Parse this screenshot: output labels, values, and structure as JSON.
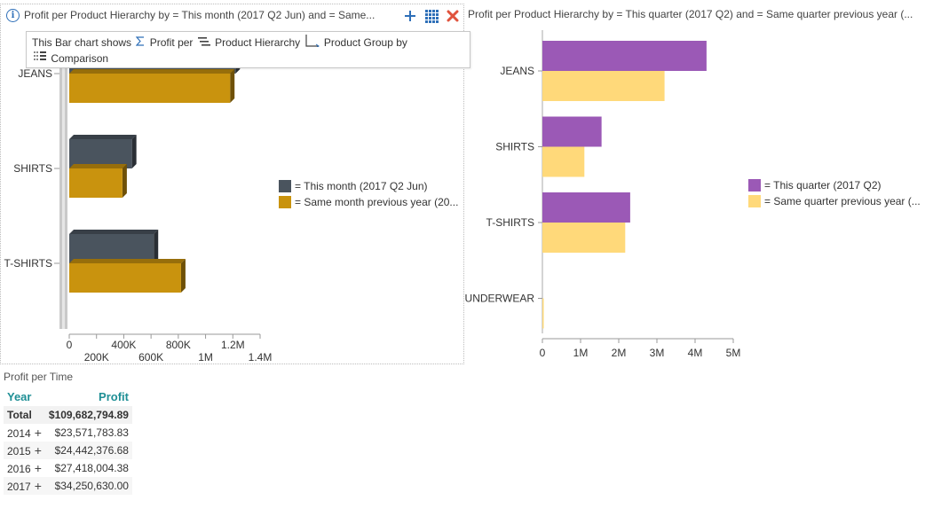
{
  "left_panel": {
    "title": "Profit per Product Hierarchy by = This month (2017 Q2 Jun) and = Same...",
    "tooltip": {
      "line1_prefix": "This Bar chart shows",
      "measure": "Profit per",
      "dimension": "Product Hierarchy",
      "group": "Product Group by",
      "line2": "Comparison"
    },
    "icons": {
      "info": "info-icon",
      "add": "plus-icon",
      "grid": "grid-icon",
      "close": "close-icon"
    },
    "legend": [
      {
        "label": "= This month (2017 Q2 Jun)",
        "color": "#4a545e"
      },
      {
        "label": "= Same month previous year (20...",
        "color": "#c9930e"
      }
    ]
  },
  "right_panel": {
    "title": "Profit per Product Hierarchy by = This quarter (2017 Q2) and = Same quarter previous year (...",
    "legend": [
      {
        "label": "= This quarter (2017 Q2)",
        "color": "#9b59b6"
      },
      {
        "label": "= Same quarter previous year (...",
        "color": "#ffd97a"
      }
    ]
  },
  "chart_data": [
    {
      "type": "bar",
      "orientation": "horizontal",
      "categories": [
        "JEANS",
        "SHIRTS",
        "T-SHIRTS"
      ],
      "series": [
        {
          "name": "= This month (2017 Q2 Jun)",
          "values": [
            1220000,
            460000,
            620000
          ],
          "color": "#4a545e"
        },
        {
          "name": "= Same month previous year (20...",
          "values": [
            1180000,
            390000,
            820000
          ],
          "color": "#c9930e"
        }
      ],
      "xlim": [
        0,
        1400000
      ],
      "xticks": [
        0,
        200000,
        400000,
        600000,
        800000,
        1000000,
        1200000,
        1400000
      ],
      "xtick_labels": [
        "0",
        "200K",
        "400K",
        "600K",
        "800K",
        "1M",
        "1.2M",
        "1.4M"
      ],
      "legend_position": "right"
    },
    {
      "type": "bar",
      "orientation": "horizontal",
      "categories": [
        "JEANS",
        "SHIRTS",
        "T-SHIRTS",
        "UNDERWEAR"
      ],
      "series": [
        {
          "name": "= This quarter (2017 Q2)",
          "values": [
            4300000,
            1550000,
            2300000,
            0
          ],
          "color": "#9b59b6"
        },
        {
          "name": "= Same quarter previous year (...",
          "values": [
            3200000,
            1100000,
            2170000,
            10000
          ],
          "color": "#ffd97a"
        }
      ],
      "xlim": [
        0,
        5000000
      ],
      "xticks": [
        0,
        1000000,
        2000000,
        3000000,
        4000000,
        5000000
      ],
      "xtick_labels": [
        "0",
        "1M",
        "2M",
        "3M",
        "4M",
        "5M"
      ],
      "legend_position": "right"
    }
  ],
  "profit_table": {
    "title": "Profit per Time",
    "headers": {
      "year": "Year",
      "profit": "Profit"
    },
    "total": {
      "label": "Total",
      "value": "$109,682,794.89"
    },
    "rows": [
      {
        "year": "2014",
        "value": "$23,571,783.83"
      },
      {
        "year": "2015",
        "value": "$24,442,376.68"
      },
      {
        "year": "2016",
        "value": "$27,418,004.38"
      },
      {
        "year": "2017",
        "value": "$34,250,630.00"
      }
    ],
    "expander": "+"
  }
}
